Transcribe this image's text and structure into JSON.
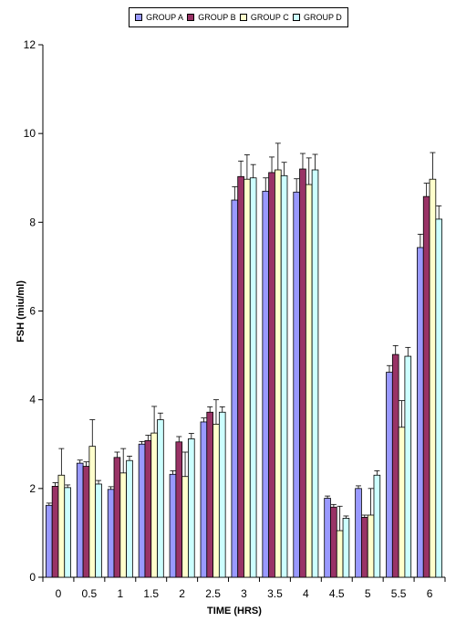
{
  "chart_data": {
    "type": "bar",
    "xlabel": "TIME (HRS)",
    "ylabel": "FSH (miu/ml)",
    "ylim": [
      0,
      12
    ],
    "yticks": [
      0,
      2,
      4,
      6,
      8,
      10,
      12
    ],
    "legend_position": "top-center",
    "grid": false,
    "error_bars": true,
    "categories": [
      "0",
      "0.5",
      "1",
      "1.5",
      "2",
      "2.5",
      "3",
      "3.5",
      "4",
      "4.5",
      "5",
      "5.5",
      "6"
    ],
    "series": [
      {
        "name": "GROUP A",
        "color": "#9999ff",
        "values": [
          1.62,
          2.57,
          1.98,
          3.0,
          2.32,
          3.5,
          8.5,
          8.7,
          8.68,
          1.78,
          2.0,
          4.62,
          7.43
        ],
        "errors": [
          0.05,
          0.07,
          0.06,
          0.06,
          0.08,
          0.09,
          0.3,
          0.3,
          0.3,
          0.05,
          0.06,
          0.15,
          0.3
        ]
      },
      {
        "name": "GROUP B",
        "color": "#993366",
        "values": [
          2.05,
          2.5,
          2.7,
          3.08,
          3.05,
          3.72,
          9.03,
          9.12,
          9.2,
          1.58,
          1.35,
          5.02,
          8.58
        ],
        "errors": [
          0.08,
          0.1,
          0.12,
          0.12,
          0.12,
          0.12,
          0.35,
          0.35,
          0.35,
          0.06,
          0.05,
          0.2,
          0.3
        ]
      },
      {
        "name": "GROUP C",
        "color": "#ffffcc",
        "values": [
          2.3,
          2.95,
          2.35,
          3.25,
          2.27,
          3.45,
          8.97,
          9.18,
          8.85,
          1.05,
          1.4,
          3.38,
          8.97
        ],
        "errors": [
          0.6,
          0.6,
          0.55,
          0.6,
          0.55,
          0.55,
          0.55,
          0.6,
          0.6,
          0.55,
          0.6,
          0.6,
          0.6
        ]
      },
      {
        "name": "GROUP D",
        "color": "#ccffff",
        "values": [
          2.02,
          2.1,
          2.63,
          3.55,
          3.12,
          3.72,
          9.0,
          9.05,
          9.18,
          1.33,
          2.3,
          4.98,
          8.07
        ],
        "errors": [
          0.06,
          0.08,
          0.1,
          0.15,
          0.12,
          0.12,
          0.3,
          0.3,
          0.35,
          0.05,
          0.1,
          0.2,
          0.3
        ]
      }
    ]
  }
}
